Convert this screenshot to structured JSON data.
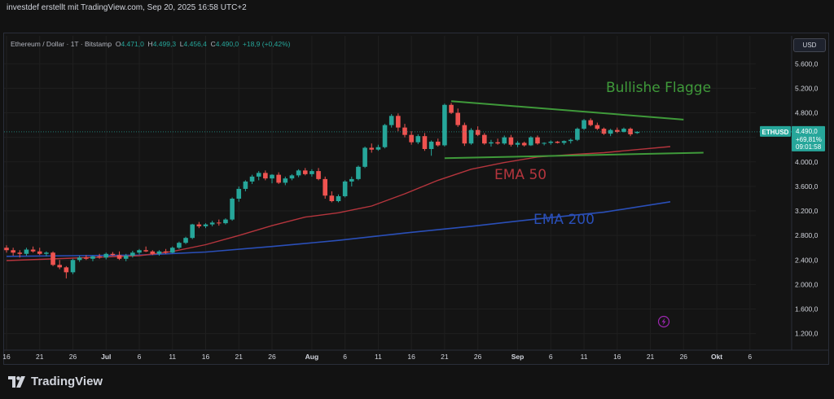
{
  "caption": "investdef erstellt mit TradingView.com, Sep 20, 2025 16:58 UTC+2",
  "legend": {
    "symbol": "Ethereum / Dollar · 1T · Bitstamp",
    "o_label": "O",
    "o_val": "4.471,0",
    "h_label": "H",
    "h_val": "4.499,3",
    "l_label": "L",
    "l_val": "4.456,4",
    "c_label": "C",
    "c_val": "4.490,0",
    "change": "+18,9 (+0,42%)"
  },
  "currency_button": "USD",
  "brand": {
    "name": "TradingView",
    "icon": "tradingview-logo-icon"
  },
  "colors": {
    "up": "#26a69a",
    "down": "#ef5350",
    "ema50": "#b5353d",
    "ema200": "#2a4fb8",
    "flag": "#3f9a3a",
    "price_tag": "#26a69a",
    "grid": "#1f1f1f",
    "text": "#d1d4dc"
  },
  "chart_data": {
    "type": "candlestick",
    "price_axis_labels": [
      "5.600,0",
      "5.200,0",
      "4.800,0",
      "4.400,0",
      "4.000,0",
      "3.600,0",
      "3.200,0",
      "2.800,0",
      "2.400,0",
      "2.000,0",
      "1.600,0",
      "1.200,0"
    ],
    "price_ticks": [
      5600,
      5200,
      4800,
      4400,
      4000,
      3600,
      3200,
      2800,
      2400,
      2000,
      1600,
      1200
    ],
    "ylim": [
      930,
      5790
    ],
    "time_axis_labels": [
      "16",
      "21",
      "26",
      "Jul",
      "6",
      "11",
      "16",
      "21",
      "26",
      "Aug",
      "6",
      "11",
      "16",
      "21",
      "26",
      "Sep",
      "6",
      "11",
      "16",
      "21",
      "26",
      "Okt",
      "6"
    ],
    "time_ticks_day": [
      0,
      5,
      10,
      15,
      20,
      25,
      30,
      35,
      40,
      46,
      51,
      56,
      61,
      66,
      71,
      77,
      82,
      87,
      92,
      97,
      102,
      107,
      112
    ],
    "x_start_date": "2025-06-16",
    "last_price": {
      "symbol": "ETHUSD",
      "price": "4.490,0",
      "change_pct": "+69,81%",
      "countdown": "09:01:58",
      "value": 4490
    },
    "annotations": [
      {
        "text": "Bullishe Flagge",
        "color": "#3f9a3a"
      },
      {
        "text": "EMA 50",
        "color": "#b5353d"
      },
      {
        "text": "EMA 200",
        "color": "#2a4fb8"
      }
    ],
    "flag_upper": [
      [
        67,
        4990
      ],
      [
        102,
        4690
      ]
    ],
    "flag_lower": [
      [
        66,
        4060
      ],
      [
        105,
        4150
      ]
    ],
    "ema50": [
      [
        0,
        2390
      ],
      [
        10,
        2430
      ],
      [
        20,
        2470
      ],
      [
        25,
        2540
      ],
      [
        30,
        2650
      ],
      [
        35,
        2800
      ],
      [
        40,
        2960
      ],
      [
        45,
        3100
      ],
      [
        50,
        3170
      ],
      [
        55,
        3280
      ],
      [
        60,
        3480
      ],
      [
        65,
        3700
      ],
      [
        70,
        3880
      ],
      [
        75,
        3990
      ],
      [
        80,
        4080
      ],
      [
        85,
        4120
      ],
      [
        90,
        4150
      ],
      [
        95,
        4200
      ],
      [
        100,
        4250
      ]
    ],
    "ema200": [
      [
        0,
        2460
      ],
      [
        10,
        2470
      ],
      [
        20,
        2480
      ],
      [
        30,
        2530
      ],
      [
        40,
        2620
      ],
      [
        50,
        2720
      ],
      [
        60,
        2840
      ],
      [
        70,
        2950
      ],
      [
        80,
        3070
      ],
      [
        90,
        3180
      ],
      [
        100,
        3350
      ]
    ],
    "candles": [
      [
        2600,
        2640,
        2520,
        2560
      ],
      [
        2560,
        2600,
        2470,
        2520
      ],
      [
        2520,
        2560,
        2440,
        2500
      ],
      [
        2500,
        2600,
        2470,
        2570
      ],
      [
        2570,
        2620,
        2520,
        2540
      ],
      [
        2540,
        2600,
        2480,
        2500
      ],
      [
        2500,
        2540,
        2460,
        2520
      ],
      [
        2520,
        2540,
        2300,
        2320
      ],
      [
        2320,
        2400,
        2250,
        2280
      ],
      [
        2280,
        2300,
        2100,
        2200
      ],
      [
        2200,
        2420,
        2170,
        2400
      ],
      [
        2400,
        2470,
        2370,
        2440
      ],
      [
        2440,
        2480,
        2400,
        2420
      ],
      [
        2420,
        2470,
        2380,
        2460
      ],
      [
        2460,
        2500,
        2420,
        2440
      ],
      [
        2440,
        2520,
        2410,
        2500
      ],
      [
        2500,
        2530,
        2470,
        2480
      ],
      [
        2480,
        2540,
        2400,
        2420
      ],
      [
        2420,
        2500,
        2380,
        2470
      ],
      [
        2470,
        2550,
        2440,
        2520
      ],
      [
        2520,
        2580,
        2490,
        2560
      ],
      [
        2560,
        2620,
        2530,
        2540
      ],
      [
        2540,
        2560,
        2480,
        2500
      ],
      [
        2500,
        2560,
        2470,
        2540
      ],
      [
        2540,
        2580,
        2500,
        2520
      ],
      [
        2520,
        2620,
        2510,
        2600
      ],
      [
        2600,
        2700,
        2580,
        2680
      ],
      [
        2680,
        2780,
        2660,
        2760
      ],
      [
        2760,
        2990,
        2740,
        2980
      ],
      [
        2980,
        3020,
        2920,
        2950
      ],
      [
        2950,
        3000,
        2920,
        2980
      ],
      [
        2980,
        3040,
        2950,
        3010
      ],
      [
        3010,
        3060,
        2960,
        3000
      ],
      [
        3000,
        3080,
        2980,
        3060
      ],
      [
        3060,
        3420,
        3040,
        3400
      ],
      [
        3400,
        3600,
        3350,
        3560
      ],
      [
        3560,
        3700,
        3520,
        3680
      ],
      [
        3680,
        3790,
        3640,
        3760
      ],
      [
        3760,
        3850,
        3700,
        3820
      ],
      [
        3820,
        3860,
        3700,
        3730
      ],
      [
        3730,
        3800,
        3650,
        3790
      ],
      [
        3790,
        3830,
        3640,
        3660
      ],
      [
        3660,
        3760,
        3620,
        3730
      ],
      [
        3730,
        3800,
        3700,
        3780
      ],
      [
        3780,
        3880,
        3750,
        3860
      ],
      [
        3860,
        3900,
        3780,
        3800
      ],
      [
        3800,
        3880,
        3760,
        3850
      ],
      [
        3850,
        3900,
        3700,
        3720
      ],
      [
        3720,
        3760,
        3400,
        3450
      ],
      [
        3450,
        3520,
        3340,
        3360
      ],
      [
        3360,
        3470,
        3340,
        3440
      ],
      [
        3440,
        3700,
        3420,
        3680
      ],
      [
        3680,
        3760,
        3600,
        3720
      ],
      [
        3720,
        3940,
        3700,
        3920
      ],
      [
        3920,
        4250,
        3900,
        4230
      ],
      [
        4230,
        4300,
        4150,
        4200
      ],
      [
        4200,
        4280,
        4180,
        4240
      ],
      [
        4240,
        4620,
        4220,
        4600
      ],
      [
        4600,
        4780,
        4560,
        4750
      ],
      [
        4750,
        4790,
        4500,
        4560
      ],
      [
        4560,
        4620,
        4400,
        4440
      ],
      [
        4440,
        4500,
        4280,
        4320
      ],
      [
        4320,
        4450,
        4290,
        4420
      ],
      [
        4420,
        4470,
        4180,
        4210
      ],
      [
        4210,
        4350,
        4100,
        4330
      ],
      [
        4330,
        4380,
        4250,
        4270
      ],
      [
        4270,
        4950,
        4250,
        4930
      ],
      [
        4930,
        4960,
        4780,
        4800
      ],
      [
        4800,
        4870,
        4570,
        4600
      ],
      [
        4600,
        4640,
        4260,
        4300
      ],
      [
        4300,
        4550,
        4280,
        4520
      ],
      [
        4520,
        4580,
        4420,
        4440
      ],
      [
        4440,
        4470,
        4280,
        4300
      ],
      [
        4300,
        4360,
        4250,
        4320
      ],
      [
        4320,
        4380,
        4280,
        4300
      ],
      [
        4300,
        4430,
        4280,
        4400
      ],
      [
        4400,
        4440,
        4250,
        4280
      ],
      [
        4280,
        4340,
        4240,
        4310
      ],
      [
        4310,
        4330,
        4250,
        4270
      ],
      [
        4270,
        4420,
        4260,
        4400
      ],
      [
        4400,
        4430,
        4280,
        4300
      ],
      [
        4300,
        4320,
        4270,
        4310
      ],
      [
        4310,
        4350,
        4280,
        4330
      ],
      [
        4330,
        4340,
        4300,
        4310
      ],
      [
        4310,
        4350,
        4280,
        4340
      ],
      [
        4340,
        4380,
        4300,
        4360
      ],
      [
        4360,
        4560,
        4340,
        4540
      ],
      [
        4540,
        4700,
        4520,
        4680
      ],
      [
        4680,
        4710,
        4580,
        4600
      ],
      [
        4600,
        4640,
        4520,
        4540
      ],
      [
        4540,
        4560,
        4440,
        4460
      ],
      [
        4460,
        4540,
        4420,
        4520
      ],
      [
        4520,
        4560,
        4470,
        4490
      ],
      [
        4490,
        4560,
        4480,
        4540
      ],
      [
        4540,
        4560,
        4420,
        4450
      ],
      [
        4471,
        4499.3,
        4456.4,
        4490
      ]
    ]
  }
}
